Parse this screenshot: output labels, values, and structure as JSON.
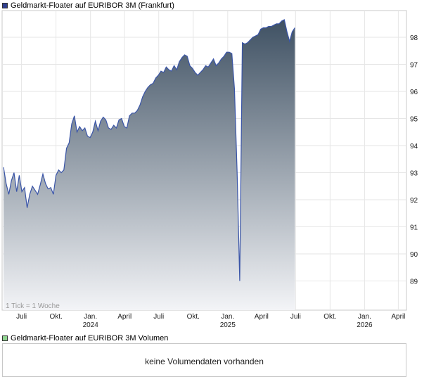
{
  "legend": {
    "price_label": "Geldmarkt-Floater auf EURIBOR 3M (Frankfurt)",
    "volume_label": "Geldmarkt-Floater auf EURIBOR 3M Volumen",
    "price_color": "#2f3f8f",
    "volume_color": "#8fd48f"
  },
  "volume": {
    "message": "keine Volumendaten vorhanden"
  },
  "chart_data": {
    "type": "area",
    "note": "1 Tick = 1 Woche",
    "ylim": [
      88,
      98.6
    ],
    "yticks": [
      89,
      90,
      91,
      92,
      93,
      94,
      95,
      96,
      97,
      98
    ],
    "x_range": [
      "2023-05-14",
      "2026-04-19"
    ],
    "xticks": [
      {
        "date": "2023-07-01",
        "label": "Juli",
        "year": ""
      },
      {
        "date": "2023-10-01",
        "label": "Okt.",
        "year": ""
      },
      {
        "date": "2024-01-01",
        "label": "Jan.",
        "year": "2024"
      },
      {
        "date": "2024-04-01",
        "label": "April",
        "year": ""
      },
      {
        "date": "2024-07-01",
        "label": "Juli",
        "year": ""
      },
      {
        "date": "2024-10-01",
        "label": "Okt.",
        "year": ""
      },
      {
        "date": "2025-01-01",
        "label": "Jan.",
        "year": "2025"
      },
      {
        "date": "2025-04-01",
        "label": "April",
        "year": ""
      },
      {
        "date": "2025-07-01",
        "label": "Juli",
        "year": ""
      },
      {
        "date": "2025-10-01",
        "label": "Okt.",
        "year": ""
      },
      {
        "date": "2026-01-01",
        "label": "Jan.",
        "year": "2026"
      },
      {
        "date": "2026-04-01",
        "label": "April",
        "year": ""
      }
    ],
    "series": [
      {
        "line_color": "#3a55a8",
        "fill_top": "#3f5163",
        "fill_bottom": "#f3f4f7",
        "points": [
          [
            "2023-05-14",
            93.2
          ],
          [
            "2023-05-21",
            92.6
          ],
          [
            "2023-05-28",
            92.2
          ],
          [
            "2023-06-04",
            92.7
          ],
          [
            "2023-06-11",
            93.0
          ],
          [
            "2023-06-18",
            92.3
          ],
          [
            "2023-06-25",
            92.9
          ],
          [
            "2023-07-02",
            92.3
          ],
          [
            "2023-07-09",
            92.45
          ],
          [
            "2023-07-16",
            91.7
          ],
          [
            "2023-07-23",
            92.2
          ],
          [
            "2023-07-30",
            92.5
          ],
          [
            "2023-08-06",
            92.35
          ],
          [
            "2023-08-13",
            92.2
          ],
          [
            "2023-08-20",
            92.55
          ],
          [
            "2023-08-27",
            92.95
          ],
          [
            "2023-09-03",
            92.6
          ],
          [
            "2023-09-10",
            92.4
          ],
          [
            "2023-09-17",
            92.45
          ],
          [
            "2023-09-24",
            92.2
          ],
          [
            "2023-10-01",
            92.9
          ],
          [
            "2023-10-08",
            93.1
          ],
          [
            "2023-10-15",
            93.0
          ],
          [
            "2023-10-22",
            93.1
          ],
          [
            "2023-10-29",
            93.9
          ],
          [
            "2023-11-05",
            94.1
          ],
          [
            "2023-11-12",
            94.8
          ],
          [
            "2023-11-19",
            95.1
          ],
          [
            "2023-11-26",
            94.5
          ],
          [
            "2023-12-03",
            94.7
          ],
          [
            "2023-12-10",
            94.55
          ],
          [
            "2023-12-17",
            94.65
          ],
          [
            "2023-12-24",
            94.35
          ],
          [
            "2023-12-31",
            94.3
          ],
          [
            "2024-01-07",
            94.5
          ],
          [
            "2024-01-14",
            94.9
          ],
          [
            "2024-01-21",
            94.55
          ],
          [
            "2024-01-28",
            94.9
          ],
          [
            "2024-02-04",
            95.05
          ],
          [
            "2024-02-11",
            94.95
          ],
          [
            "2024-02-18",
            94.65
          ],
          [
            "2024-02-25",
            94.6
          ],
          [
            "2024-03-03",
            94.75
          ],
          [
            "2024-03-10",
            94.65
          ],
          [
            "2024-03-17",
            94.95
          ],
          [
            "2024-03-24",
            95.0
          ],
          [
            "2024-03-31",
            94.7
          ],
          [
            "2024-04-07",
            94.65
          ],
          [
            "2024-04-14",
            95.1
          ],
          [
            "2024-04-21",
            95.2
          ],
          [
            "2024-04-28",
            95.2
          ],
          [
            "2024-05-05",
            95.3
          ],
          [
            "2024-05-12",
            95.5
          ],
          [
            "2024-05-19",
            95.8
          ],
          [
            "2024-05-26",
            96.0
          ],
          [
            "2024-06-02",
            96.15
          ],
          [
            "2024-06-09",
            96.25
          ],
          [
            "2024-06-16",
            96.3
          ],
          [
            "2024-06-23",
            96.5
          ],
          [
            "2024-06-30",
            96.6
          ],
          [
            "2024-07-07",
            96.75
          ],
          [
            "2024-07-14",
            96.7
          ],
          [
            "2024-07-21",
            96.9
          ],
          [
            "2024-07-28",
            96.8
          ],
          [
            "2024-08-04",
            96.75
          ],
          [
            "2024-08-11",
            96.95
          ],
          [
            "2024-08-18",
            96.8
          ],
          [
            "2024-08-25",
            97.1
          ],
          [
            "2024-09-01",
            97.25
          ],
          [
            "2024-09-08",
            97.35
          ],
          [
            "2024-09-15",
            97.3
          ],
          [
            "2024-09-22",
            96.95
          ],
          [
            "2024-09-29",
            96.85
          ],
          [
            "2024-10-06",
            96.7
          ],
          [
            "2024-10-13",
            96.6
          ],
          [
            "2024-10-20",
            96.7
          ],
          [
            "2024-10-27",
            96.8
          ],
          [
            "2024-11-03",
            96.95
          ],
          [
            "2024-11-10",
            96.9
          ],
          [
            "2024-11-17",
            97.05
          ],
          [
            "2024-11-24",
            97.2
          ],
          [
            "2024-12-01",
            96.95
          ],
          [
            "2024-12-08",
            97.05
          ],
          [
            "2024-12-15",
            97.2
          ],
          [
            "2024-12-22",
            97.3
          ],
          [
            "2024-12-29",
            97.45
          ],
          [
            "2025-01-05",
            97.45
          ],
          [
            "2025-01-12",
            97.4
          ],
          [
            "2025-01-19",
            96.1
          ],
          [
            "2025-01-26",
            93.0
          ],
          [
            "2025-02-02",
            89.0
          ],
          [
            "2025-02-09",
            97.8
          ],
          [
            "2025-02-16",
            97.75
          ],
          [
            "2025-02-23",
            97.8
          ],
          [
            "2025-03-02",
            97.9
          ],
          [
            "2025-03-09",
            98.0
          ],
          [
            "2025-03-16",
            98.05
          ],
          [
            "2025-03-23",
            98.1
          ],
          [
            "2025-03-30",
            98.3
          ],
          [
            "2025-04-06",
            98.35
          ],
          [
            "2025-04-13",
            98.35
          ],
          [
            "2025-04-20",
            98.4
          ],
          [
            "2025-04-27",
            98.4
          ],
          [
            "2025-05-04",
            98.45
          ],
          [
            "2025-05-11",
            98.5
          ],
          [
            "2025-05-18",
            98.5
          ],
          [
            "2025-05-25",
            98.6
          ],
          [
            "2025-06-01",
            98.65
          ],
          [
            "2025-06-08",
            98.2
          ],
          [
            "2025-06-15",
            97.85
          ],
          [
            "2025-06-22",
            98.2
          ],
          [
            "2025-06-29",
            98.35
          ]
        ]
      }
    ]
  }
}
